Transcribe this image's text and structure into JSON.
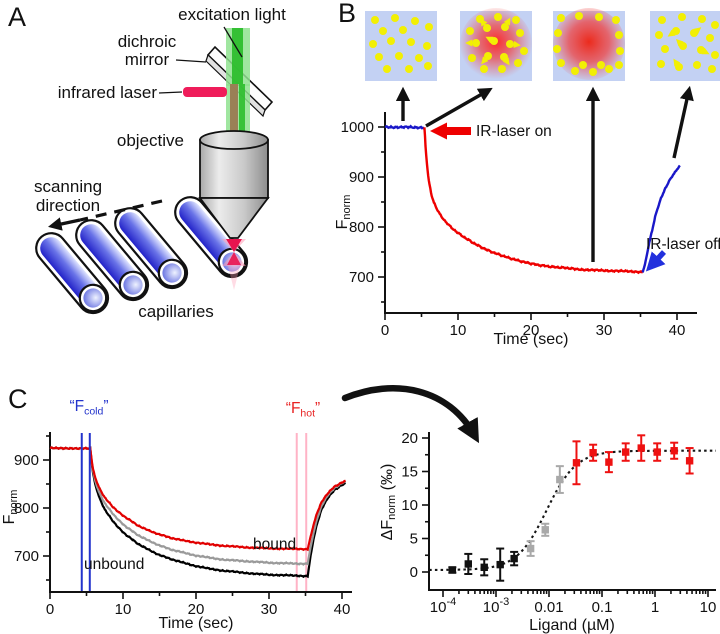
{
  "figure": {
    "panels": {
      "a": "A",
      "b": "B",
      "c": "C"
    }
  },
  "panel_a": {
    "labels": {
      "excitation_light": "excitation light",
      "dichroic_line1": "dichroic",
      "dichroic_line2": "mirror",
      "infrared_laser": "infrared laser",
      "objective": "objective",
      "scanning_line1": "scanning",
      "scanning_line2": "direction",
      "capillaries": "capillaries"
    }
  },
  "panel_b": {
    "annotations": {
      "laser_on": "IR-laser on",
      "laser_off": "IR-laser off"
    }
  },
  "panel_c": {
    "annotations": {
      "f_cold_pre": "“F",
      "f_cold_sub": "cold",
      "f_cold_post": "”",
      "f_hot_pre": "“F",
      "f_hot_sub": "hot",
      "f_hot_post": "”",
      "bound": "bound",
      "unbound": "unbound"
    }
  },
  "chart_data": [
    {
      "type": "line",
      "title": "",
      "xlabel": "Time (sec)",
      "ylabel": {
        "pre": "F",
        "sub": "norm",
        "post": ""
      },
      "xlim": [
        0,
        42.5
      ],
      "ylim": [
        628,
        1036
      ],
      "xticks": [
        0,
        10,
        20,
        30,
        40
      ],
      "xticks_minor": [
        5,
        15,
        25,
        35
      ],
      "yticks": [
        1000,
        900,
        800,
        700
      ],
      "yticks_minor": [
        950,
        850,
        750,
        650
      ],
      "grid": false,
      "series": [
        {
          "name": "initial-laser-off",
          "color": "#1a18c8",
          "width": 2.4,
          "noise": 1.8,
          "points": [
            [
              0,
              1000
            ],
            [
              5.4,
              999
            ]
          ]
        },
        {
          "name": "thermophoresis-laser-on",
          "color": "#ee0000",
          "width": 2.4,
          "noise": 1.5,
          "points": [
            [
              5.4,
              999
            ],
            [
              5.55,
              962
            ],
            [
              5.75,
              925
            ],
            [
              6.0,
              893
            ],
            [
              6.3,
              868
            ],
            [
              6.7,
              849
            ],
            [
              7.1,
              836
            ],
            [
              7.6,
              824
            ],
            [
              8.2,
              812
            ],
            [
              9,
              800
            ],
            [
              10,
              788
            ],
            [
              11,
              778
            ],
            [
              12,
              769
            ],
            [
              13,
              761
            ],
            [
              14,
              754
            ],
            [
              15,
              748
            ],
            [
              16,
              743
            ],
            [
              17,
              738
            ],
            [
              18,
              734
            ],
            [
              19,
              730
            ],
            [
              20,
              727
            ],
            [
              21,
              724
            ],
            [
              22,
              722
            ],
            [
              23,
              720
            ],
            [
              24,
              719
            ],
            [
              25,
              718
            ],
            [
              26,
              716
            ],
            [
              28,
              714
            ],
            [
              30,
              713
            ],
            [
              32,
              712
            ],
            [
              34,
              711
            ],
            [
              35.3,
              710
            ]
          ]
        },
        {
          "name": "back-diffusion-laser-off",
          "color": "#1a18c8",
          "width": 2.4,
          "noise": 1.2,
          "points": [
            [
              35.3,
              710
            ],
            [
              35.6,
              724
            ],
            [
              35.9,
              746
            ],
            [
              36.2,
              769
            ],
            [
              36.6,
              793
            ],
            [
              37.0,
              820
            ],
            [
              37.4,
              840
            ],
            [
              37.9,
              861
            ],
            [
              38.4,
              877
            ],
            [
              39.0,
              894
            ],
            [
              39.6,
              907
            ],
            [
              40.1,
              917
            ],
            [
              40.4,
              923
            ]
          ]
        }
      ]
    },
    {
      "type": "line",
      "title": "",
      "xlabel": "Time (sec)",
      "ylabel": {
        "pre": "F",
        "sub": "norm",
        "post": ""
      },
      "xlim": [
        0,
        41.5
      ],
      "ylim": [
        625,
        958
      ],
      "xticks": [
        0,
        10,
        20,
        30,
        40
      ],
      "xticks_minor": [
        5,
        15,
        25,
        35
      ],
      "yticks": [
        900,
        800,
        700
      ],
      "yticks_minor": [
        950,
        850,
        750,
        650
      ],
      "grid": false,
      "marker_lines": {
        "f_cold": {
          "x": [
            4.35,
            5.45
          ],
          "color": "#2233cc"
        },
        "f_hot": {
          "x": [
            33.8,
            35.1
          ],
          "color": "#ffb3c6"
        }
      },
      "series": [
        {
          "name": "unbound",
          "color": "#000000",
          "width": 2.2,
          "noise": 1.3,
          "points": [
            [
              0,
              925
            ],
            [
              5.5,
              924
            ],
            [
              5.7,
              896
            ],
            [
              5.9,
              873
            ],
            [
              6.2,
              848
            ],
            [
              6.8,
              820
            ],
            [
              7.5,
              797
            ],
            [
              8.5,
              775
            ],
            [
              9.5,
              757
            ],
            [
              10.5,
              743
            ],
            [
              12,
              726
            ],
            [
              13.5,
              713
            ],
            [
              15,
              702
            ],
            [
              16.5,
              694
            ],
            [
              18,
              687
            ],
            [
              20,
              679
            ],
            [
              22,
              673
            ],
            [
              24,
              669
            ],
            [
              26,
              666
            ],
            [
              28,
              663
            ],
            [
              30,
              661
            ],
            [
              32,
              660
            ],
            [
              34,
              659
            ],
            [
              35.3,
              658
            ],
            [
              35.7,
              700
            ],
            [
              36.1,
              735
            ],
            [
              36.6,
              768
            ],
            [
              37.2,
              797
            ],
            [
              38,
              820
            ],
            [
              39,
              838
            ],
            [
              40,
              848
            ],
            [
              40.5,
              852
            ]
          ]
        },
        {
          "name": "intermediate",
          "color": "#9a9a9a",
          "width": 2.2,
          "noise": 1.3,
          "points": [
            [
              0,
              925
            ],
            [
              5.5,
              924
            ],
            [
              5.7,
              899
            ],
            [
              5.9,
              878
            ],
            [
              6.2,
              855
            ],
            [
              6.8,
              830
            ],
            [
              7.5,
              810
            ],
            [
              8.5,
              790
            ],
            [
              9.5,
              773
            ],
            [
              10.5,
              760
            ],
            [
              12,
              744
            ],
            [
              13.5,
              732
            ],
            [
              15,
              722
            ],
            [
              16.5,
              714
            ],
            [
              18,
              708
            ],
            [
              20,
              701
            ],
            [
              22,
              696
            ],
            [
              24,
              692
            ],
            [
              26,
              690
            ],
            [
              28,
              688
            ],
            [
              30,
              686
            ],
            [
              32,
              685
            ],
            [
              34,
              684
            ],
            [
              35.3,
              684
            ],
            [
              35.7,
              718
            ],
            [
              36.1,
              748
            ],
            [
              36.6,
              778
            ],
            [
              37.2,
              804
            ],
            [
              38,
              826
            ],
            [
              39,
              842
            ],
            [
              40,
              852
            ],
            [
              40.5,
              856
            ]
          ]
        },
        {
          "name": "bound",
          "color": "#e10000",
          "width": 2.2,
          "noise": 1.3,
          "points": [
            [
              0,
              925
            ],
            [
              5.5,
              924
            ],
            [
              5.7,
              901
            ],
            [
              5.9,
              882
            ],
            [
              6.2,
              862
            ],
            [
              6.8,
              840
            ],
            [
              7.5,
              822
            ],
            [
              8.5,
              804
            ],
            [
              9.5,
              790
            ],
            [
              10.5,
              779
            ],
            [
              12,
              764
            ],
            [
              13.5,
              753
            ],
            [
              15,
              745
            ],
            [
              16.5,
              738
            ],
            [
              18,
              733
            ],
            [
              20,
              728
            ],
            [
              22,
              724
            ],
            [
              24,
              721
            ],
            [
              26,
              719
            ],
            [
              28,
              717
            ],
            [
              30,
              716
            ],
            [
              32,
              715
            ],
            [
              34,
              715
            ],
            [
              35.3,
              714
            ],
            [
              35.7,
              740
            ],
            [
              36.1,
              765
            ],
            [
              36.6,
              790
            ],
            [
              37.2,
              812
            ],
            [
              38,
              830
            ],
            [
              39,
              845
            ],
            [
              40,
              853
            ],
            [
              40.5,
              857
            ]
          ]
        }
      ]
    },
    {
      "type": "scatter",
      "title": "",
      "xlabel": "Ligand (µM)",
      "ylabel": {
        "pre": "ΔF",
        "sub": "norm",
        "post": " (‰)"
      },
      "xscale": "log",
      "xlim": [
        6e-05,
        13
      ],
      "ylim": [
        -2.7,
        21
      ],
      "yticks": [
        0,
        5,
        10,
        15,
        20
      ],
      "yticks_minor": [
        2.5,
        7.5,
        12.5,
        17.5
      ],
      "xticks": [
        {
          "value": 0.0001,
          "base": "10",
          "sup": "-4"
        },
        {
          "value": 0.001,
          "base": "10",
          "sup": "-3"
        },
        {
          "value": 0.01,
          "base": "0.01"
        },
        {
          "value": 0.1,
          "base": "0.1"
        },
        {
          "value": 1,
          "base": "1"
        },
        {
          "value": 10,
          "base": "10"
        }
      ],
      "grid": false,
      "colors": {
        "unbound": "#111111",
        "transition": "#a9a9a9",
        "bound": "#ee1111"
      },
      "fit": {
        "style": "dotted",
        "color": "#151515",
        "baseline": 0.3,
        "amplitude": 17.8,
        "ec50": 0.009,
        "hill": 1.55
      },
      "points": [
        {
          "x": 0.00015,
          "y": 0.3,
          "err": 0.4,
          "group": "unbound"
        },
        {
          "x": 0.0003,
          "y": 1.2,
          "err": 1.5,
          "group": "unbound"
        },
        {
          "x": 0.0006,
          "y": 0.7,
          "err": 1.2,
          "group": "unbound"
        },
        {
          "x": 0.0012,
          "y": 1.1,
          "err": 2.4,
          "group": "unbound"
        },
        {
          "x": 0.0022,
          "y": 2.0,
          "err": 1.0,
          "group": "unbound"
        },
        {
          "x": 0.0045,
          "y": 3.5,
          "err": 1.1,
          "group": "transition"
        },
        {
          "x": 0.0085,
          "y": 6.3,
          "err": 0.9,
          "group": "transition"
        },
        {
          "x": 0.016,
          "y": 13.8,
          "err": 2.0,
          "group": "transition"
        },
        {
          "x": 0.033,
          "y": 16.3,
          "err": 3.2,
          "group": "bound"
        },
        {
          "x": 0.068,
          "y": 17.8,
          "err": 1.2,
          "group": "bound"
        },
        {
          "x": 0.135,
          "y": 16.4,
          "err": 1.5,
          "group": "bound"
        },
        {
          "x": 0.28,
          "y": 17.9,
          "err": 1.3,
          "group": "bound"
        },
        {
          "x": 0.55,
          "y": 18.5,
          "err": 1.9,
          "group": "bound"
        },
        {
          "x": 1.1,
          "y": 17.9,
          "err": 1.3,
          "group": "bound"
        },
        {
          "x": 2.3,
          "y": 18.1,
          "err": 1.2,
          "group": "bound"
        },
        {
          "x": 4.5,
          "y": 16.6,
          "err": 1.9,
          "group": "bound"
        }
      ]
    }
  ]
}
